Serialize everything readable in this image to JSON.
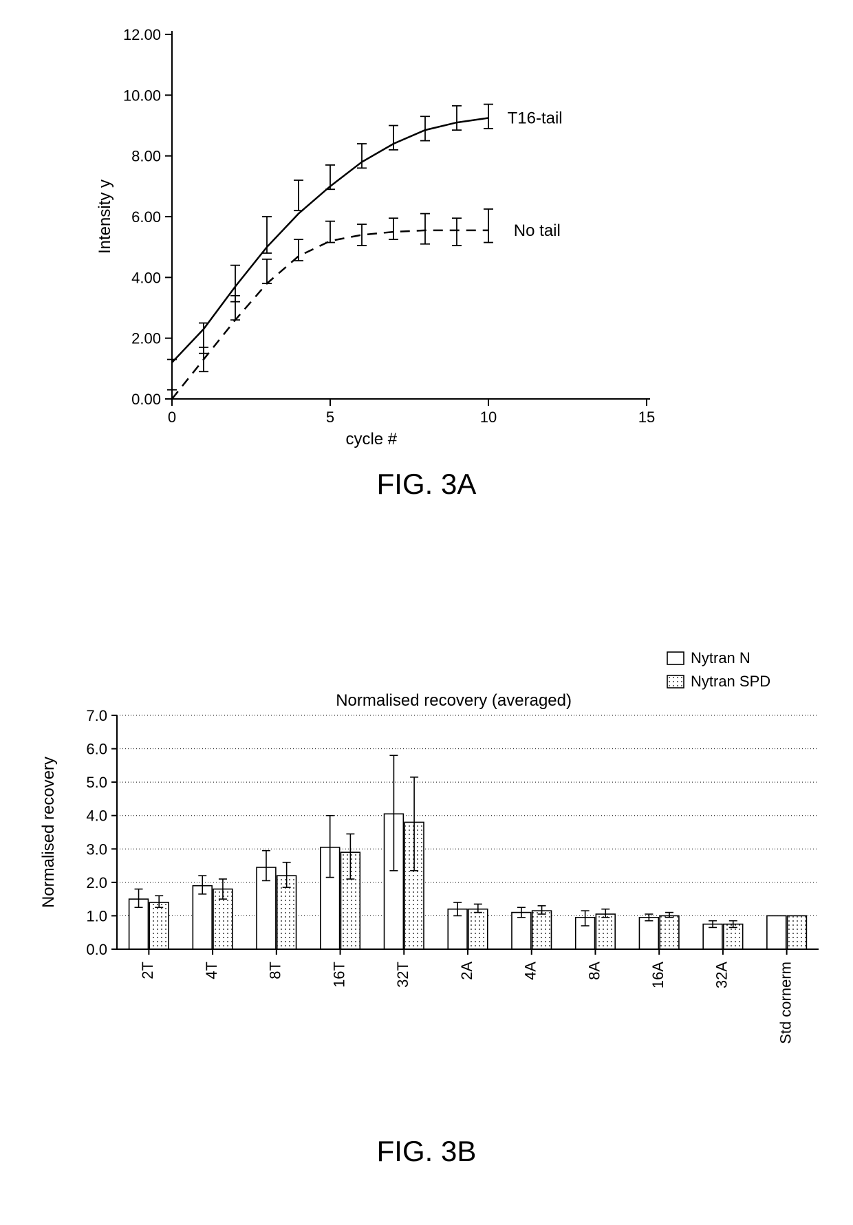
{
  "fig3a": {
    "type": "line",
    "caption": "FIG. 3A",
    "ylabel": "Intensity y",
    "xlabel": "cycle #",
    "xlim": [
      0,
      15
    ],
    "ylim": [
      0,
      12
    ],
    "xtick_step": 5,
    "ytick_step": 2,
    "ytick_decimals": 2,
    "axis_color": "#000000",
    "axis_width": 2,
    "tick_fontsize": 22,
    "label_fontsize": 24,
    "caption_fontsize": 42,
    "series": [
      {
        "name": "T16-tail",
        "label": "T16-tail",
        "dash": "solid",
        "color": "#000000",
        "line_width": 2.5,
        "curve": [
          {
            "x": 0,
            "y": 1.2
          },
          {
            "x": 1,
            "y": 2.3
          },
          {
            "x": 2,
            "y": 3.7
          },
          {
            "x": 3,
            "y": 5.0
          },
          {
            "x": 4,
            "y": 6.1
          },
          {
            "x": 5,
            "y": 7.0
          },
          {
            "x": 6,
            "y": 7.8
          },
          {
            "x": 7,
            "y": 8.4
          },
          {
            "x": 8,
            "y": 8.85
          },
          {
            "x": 9,
            "y": 9.1
          },
          {
            "x": 10,
            "y": 9.25
          }
        ],
        "points": [
          {
            "x": 0,
            "y": 0.8,
            "err": 0.5
          },
          {
            "x": 1,
            "y": 2.0,
            "err": 0.5
          },
          {
            "x": 2,
            "y": 3.8,
            "err": 0.6
          },
          {
            "x": 3,
            "y": 5.4,
            "err": 0.6
          },
          {
            "x": 4,
            "y": 6.7,
            "err": 0.5
          },
          {
            "x": 5,
            "y": 7.3,
            "err": 0.4
          },
          {
            "x": 6,
            "y": 8.0,
            "err": 0.4
          },
          {
            "x": 7,
            "y": 8.6,
            "err": 0.4
          },
          {
            "x": 8,
            "y": 8.9,
            "err": 0.4
          },
          {
            "x": 9,
            "y": 9.25,
            "err": 0.4
          },
          {
            "x": 10,
            "y": 9.3,
            "err": 0.4
          }
        ],
        "label_pos": {
          "x": 10.6,
          "y": 9.25
        }
      },
      {
        "name": "No tail",
        "label": "No tail",
        "dash": "dashed",
        "color": "#000000",
        "line_width": 2.5,
        "curve": [
          {
            "x": 0,
            "y": 0.0
          },
          {
            "x": 1,
            "y": 1.3
          },
          {
            "x": 2,
            "y": 2.6
          },
          {
            "x": 3,
            "y": 3.8
          },
          {
            "x": 4,
            "y": 4.7
          },
          {
            "x": 5,
            "y": 5.2
          },
          {
            "x": 6,
            "y": 5.4
          },
          {
            "x": 7,
            "y": 5.5
          },
          {
            "x": 8,
            "y": 5.55
          },
          {
            "x": 9,
            "y": 5.55
          },
          {
            "x": 10,
            "y": 5.55
          }
        ],
        "points": [
          {
            "x": 1,
            "y": 1.3,
            "err": 0.4
          },
          {
            "x": 2,
            "y": 3.0,
            "err": 0.4
          },
          {
            "x": 3,
            "y": 4.2,
            "err": 0.4
          },
          {
            "x": 4,
            "y": 4.9,
            "err": 0.35
          },
          {
            "x": 5,
            "y": 5.5,
            "err": 0.35
          },
          {
            "x": 6,
            "y": 5.4,
            "err": 0.35
          },
          {
            "x": 7,
            "y": 5.6,
            "err": 0.35
          },
          {
            "x": 8,
            "y": 5.6,
            "err": 0.5
          },
          {
            "x": 9,
            "y": 5.5,
            "err": 0.45
          },
          {
            "x": 10,
            "y": 5.7,
            "err": 0.55
          }
        ],
        "label_pos": {
          "x": 10.8,
          "y": 5.55
        }
      }
    ]
  },
  "fig3b": {
    "type": "bar",
    "caption": "FIG. 3B",
    "title": "Normalised recovery (averaged)",
    "ylabel": "Normalised recovery",
    "ylim": [
      0,
      7
    ],
    "ytick_step": 1,
    "ytick_decimals": 1,
    "grid_color": "#000000",
    "grid_dash": "1,3",
    "axis_color": "#000000",
    "axis_width": 2,
    "tick_fontsize": 22,
    "label_fontsize": 24,
    "title_fontsize": 24,
    "caption_fontsize": 42,
    "bar_group_gap": 0.35,
    "bar_width": 0.3,
    "legend": [
      {
        "name": "Nytran N",
        "fill": "none",
        "pattern": false
      },
      {
        "name": "Nytran SPD",
        "fill": "dots",
        "pattern": true
      }
    ],
    "categories": [
      "2T",
      "4T",
      "8T",
      "16T",
      "32T",
      "2A",
      "4A",
      "8A",
      "16A",
      "32A",
      "Std cornerm"
    ],
    "data": [
      {
        "n": 1.5,
        "spd": 1.4,
        "n_err": [
          0.3,
          0.25
        ],
        "spd_err": [
          0.2,
          0.15
        ]
      },
      {
        "n": 1.9,
        "spd": 1.8,
        "n_err": [
          0.3,
          0.25
        ],
        "spd_err": [
          0.3,
          0.3
        ]
      },
      {
        "n": 2.45,
        "spd": 2.2,
        "n_err": [
          0.5,
          0.4
        ],
        "spd_err": [
          0.4,
          0.35
        ]
      },
      {
        "n": 3.05,
        "spd": 2.9,
        "n_err": [
          0.95,
          0.9
        ],
        "spd_err": [
          0.55,
          0.8
        ]
      },
      {
        "n": 4.05,
        "spd": 3.8,
        "n_err": [
          1.75,
          1.7
        ],
        "spd_err": [
          1.35,
          1.45
        ]
      },
      {
        "n": 1.2,
        "spd": 1.2,
        "n_err": [
          0.2,
          0.2
        ],
        "spd_err": [
          0.15,
          0.1
        ]
      },
      {
        "n": 1.1,
        "spd": 1.15,
        "n_err": [
          0.15,
          0.15
        ],
        "spd_err": [
          0.15,
          0.1
        ]
      },
      {
        "n": 0.95,
        "spd": 1.05,
        "n_err": [
          0.2,
          0.25
        ],
        "spd_err": [
          0.15,
          0.1
        ]
      },
      {
        "n": 0.95,
        "spd": 1.0,
        "n_err": [
          0.1,
          0.1
        ],
        "spd_err": [
          0.1,
          0.05
        ]
      },
      {
        "n": 0.75,
        "spd": 0.75,
        "n_err": [
          0.1,
          0.1
        ],
        "spd_err": [
          0.1,
          0.1
        ]
      },
      {
        "n": 1.0,
        "spd": 1.0,
        "n_err": [
          0,
          0
        ],
        "spd_err": [
          0,
          0
        ]
      }
    ]
  }
}
